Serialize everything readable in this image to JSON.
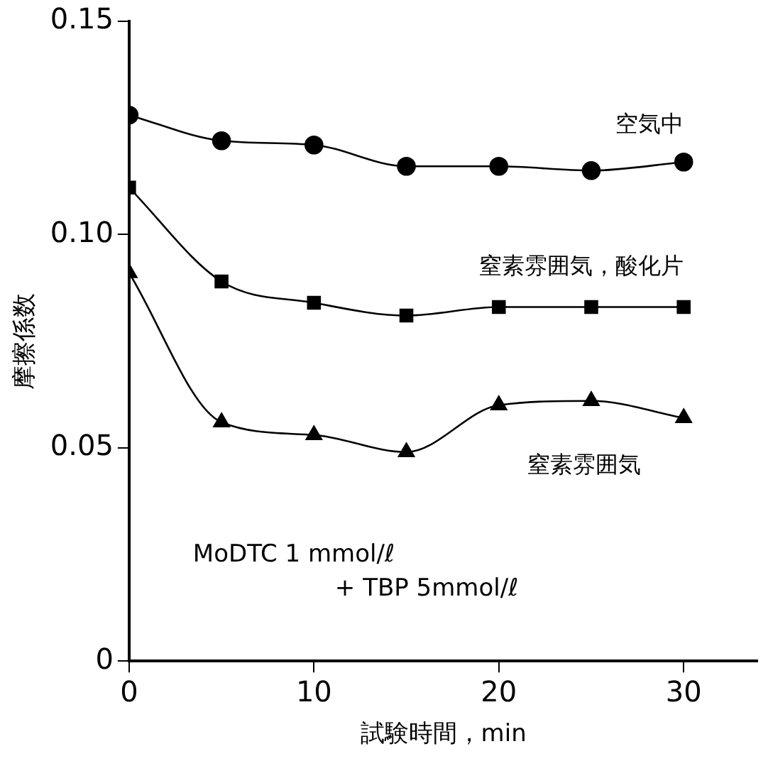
{
  "chart_data": {
    "type": "line",
    "xlabel": "試験時間，min",
    "ylabel": "摩擦係数",
    "x": [
      0,
      5,
      10,
      15,
      20,
      25,
      30
    ],
    "series": [
      {
        "name": "空気中",
        "color": "#000000",
        "marker": "circle",
        "values": [
          0.128,
          0.122,
          0.121,
          0.116,
          0.116,
          0.115,
          0.117
        ]
      },
      {
        "name": "窒素雰囲気，酸化片",
        "color": "#000000",
        "marker": "square",
        "values": [
          0.111,
          0.089,
          0.084,
          0.081,
          0.083,
          0.083,
          0.083
        ]
      },
      {
        "name": "窒素雰囲気",
        "color": "#000000",
        "marker": "triangle",
        "values": [
          0.091,
          0.056,
          0.053,
          0.049,
          0.06,
          0.061,
          0.057
        ]
      }
    ],
    "xlim": [
      0,
      34
    ],
    "xticks": [
      0,
      10,
      20,
      30
    ],
    "ylim": [
      0,
      0.15
    ],
    "yticks": [
      {
        "value": 0,
        "label": "0"
      },
      {
        "value": 0.05,
        "label": "0.05"
      },
      {
        "value": 0.1,
        "label": "0.10"
      },
      {
        "value": 0.15,
        "label": "0.15"
      }
    ],
    "annotations": [
      "MoDTC 1 mmol/ℓ",
      "+ TBP 5mmol/ℓ"
    ],
    "grid": false,
    "legend": false,
    "line_style": "solid"
  }
}
